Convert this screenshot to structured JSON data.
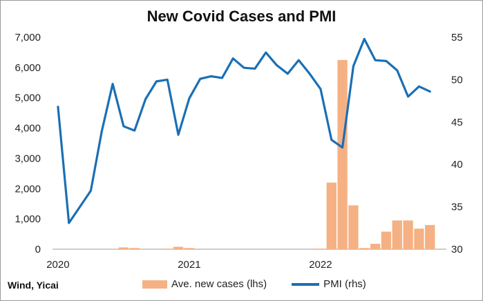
{
  "chart_data": {
    "type": "bar+line",
    "title": "New Covid Cases and PMI",
    "source": "Wind, Yicai",
    "x_labels": [
      "2020",
      "2021",
      "2022"
    ],
    "left_axis": {
      "ticks": [
        "0",
        "1,000",
        "2,000",
        "3,000",
        "4,000",
        "5,000",
        "6,000",
        "7,000"
      ],
      "ylim": [
        0,
        7000
      ]
    },
    "right_axis": {
      "ticks": [
        "30",
        "35",
        "40",
        "45",
        "50",
        "55"
      ],
      "ylim": [
        30,
        56
      ]
    },
    "months": [
      "2020-01",
      "2020-02",
      "2020-03",
      "2020-04",
      "2020-05",
      "2020-06",
      "2020-07",
      "2020-08",
      "2020-09",
      "2020-10",
      "2020-11",
      "2020-12",
      "2021-01",
      "2021-02",
      "2021-03",
      "2021-04",
      "2021-05",
      "2021-06",
      "2021-07",
      "2021-08",
      "2021-09",
      "2021-10",
      "2021-11",
      "2021-12",
      "2022-01",
      "2022-02",
      "2022-03",
      "2022-04",
      "2022-05",
      "2022-06",
      "2022-07",
      "2022-08",
      "2022-09",
      "2022-10",
      "2022-11",
      "2022-12"
    ],
    "series": [
      {
        "name": "Ave. new cases (lhs)",
        "kind": "bar",
        "axis": "left",
        "color": "#f5b183",
        "values": [
          0,
          0,
          0,
          0,
          0,
          0,
          60,
          40,
          0,
          0,
          20,
          80,
          40,
          0,
          0,
          0,
          0,
          0,
          0,
          0,
          0,
          0,
          0,
          0,
          20,
          2200,
          6250,
          1450,
          40,
          180,
          580,
          950,
          950,
          680,
          800,
          0
        ]
      },
      {
        "name": "PMI (rhs)",
        "kind": "line",
        "axis": "right",
        "color": "#1a6fb5",
        "values": [
          46.8,
          33.1,
          35.0,
          36.9,
          43.9,
          49.5,
          44.5,
          44.0,
          47.7,
          49.8,
          50.0,
          43.5,
          47.8,
          50.1,
          50.4,
          50.2,
          52.5,
          51.4,
          51.3,
          53.2,
          51.7,
          50.7,
          52.3,
          50.7,
          48.9,
          42.9,
          42.0,
          51.6,
          54.8,
          52.3,
          52.2,
          51.1,
          48.0,
          49.2,
          48.6,
          null
        ]
      }
    ],
    "legend_position": "bottom",
    "grid": false
  }
}
